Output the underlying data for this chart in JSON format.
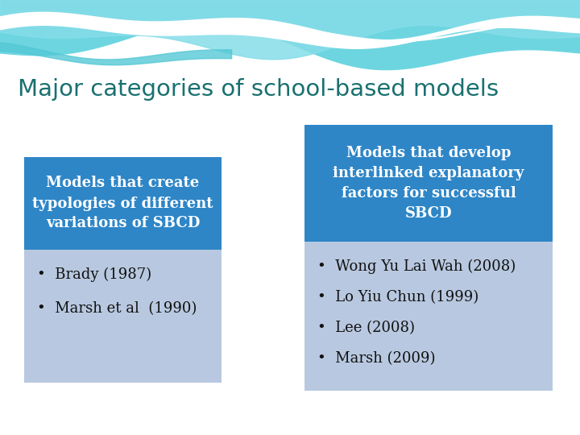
{
  "title": "Major categories of school-based models",
  "title_color": "#1a7070",
  "title_fontsize": 21,
  "bg_color": "#ffffff",
  "box1_header": "Models that create\ntypologies of different\nvariations of SBCD",
  "box1_header_bg": "#2e86c7",
  "box1_header_color": "#ffffff",
  "box1_body_bg": "#b8c8e0",
  "box1_items": [
    "Brady (1987)",
    "Marsh et al  (1990)"
  ],
  "box2_header": "Models that develop\ninterlinked explanatory\nfactors for successful\nSBCD",
  "box2_header_bg": "#2e86c7",
  "box2_header_color": "#ffffff",
  "box2_body_bg": "#b8c8e0",
  "box2_items": [
    "Wong Yu Lai Wah (2008)",
    "Lo Yiu Chun (1999)",
    "Lee (2008)",
    "Marsh (2009)"
  ],
  "bullet": "•",
  "item_fontsize": 12,
  "header_fontsize": 13
}
